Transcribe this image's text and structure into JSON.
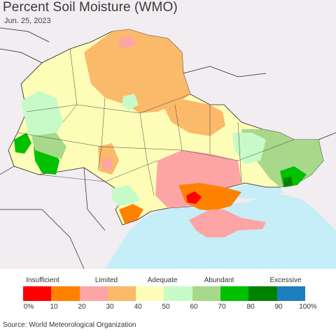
{
  "title": "Percent Soil Moisture (WMO)",
  "date": "Jun. 25, 2023",
  "source": "Source: World Meteorological Organization",
  "legend": {
    "categories": [
      "Insufficient",
      "Limited",
      "Adequate",
      "Abundant",
      "Excessive"
    ],
    "ticks": [
      "0%",
      "10",
      "20",
      "30",
      "40",
      "50",
      "60",
      "70",
      "80",
      "90",
      "100%"
    ],
    "colors": [
      "#ff0000",
      "#fe8200",
      "#fda5a4",
      "#fbb96a",
      "#fdfdb8",
      "#c8fac8",
      "#a8d88a",
      "#00c000",
      "#008200",
      "#1e7fbf"
    ]
  },
  "map_colors": {
    "sea": "#c6eef8",
    "background": "#f4f0f4",
    "border": "#000000"
  }
}
